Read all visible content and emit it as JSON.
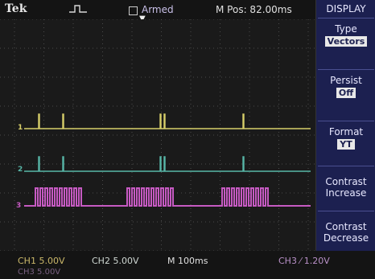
{
  "header": {
    "brand": "Tek",
    "acquisition_status": "Armed",
    "horizontal_position": "M Pos: 82.00ms"
  },
  "menu": {
    "title": "DISPLAY",
    "items": [
      {
        "label": "Type",
        "value": "Vectors"
      },
      {
        "label": "Persist",
        "value": "Off"
      },
      {
        "label": "Format",
        "value": "YT"
      },
      {
        "label": "Contrast Increase",
        "value": ""
      },
      {
        "label": "Contrast Decrease",
        "value": ""
      }
    ]
  },
  "status": {
    "ch1": "CH1  5.00V",
    "ch2": "CH2  5.00V",
    "timebase": "M 100ms",
    "trigger": "CH3  ⁄  1.20V",
    "ch3": "CH3  5.00V"
  },
  "channel_markers": {
    "ch1": "1",
    "ch2": "2",
    "ch3": "3"
  },
  "colors": {
    "ch1": "#d8cf6a",
    "ch2": "#58b7a8",
    "ch3": "#c65ac2",
    "grid": "#4a4a4a",
    "menu_bg": "#1c2050"
  }
}
